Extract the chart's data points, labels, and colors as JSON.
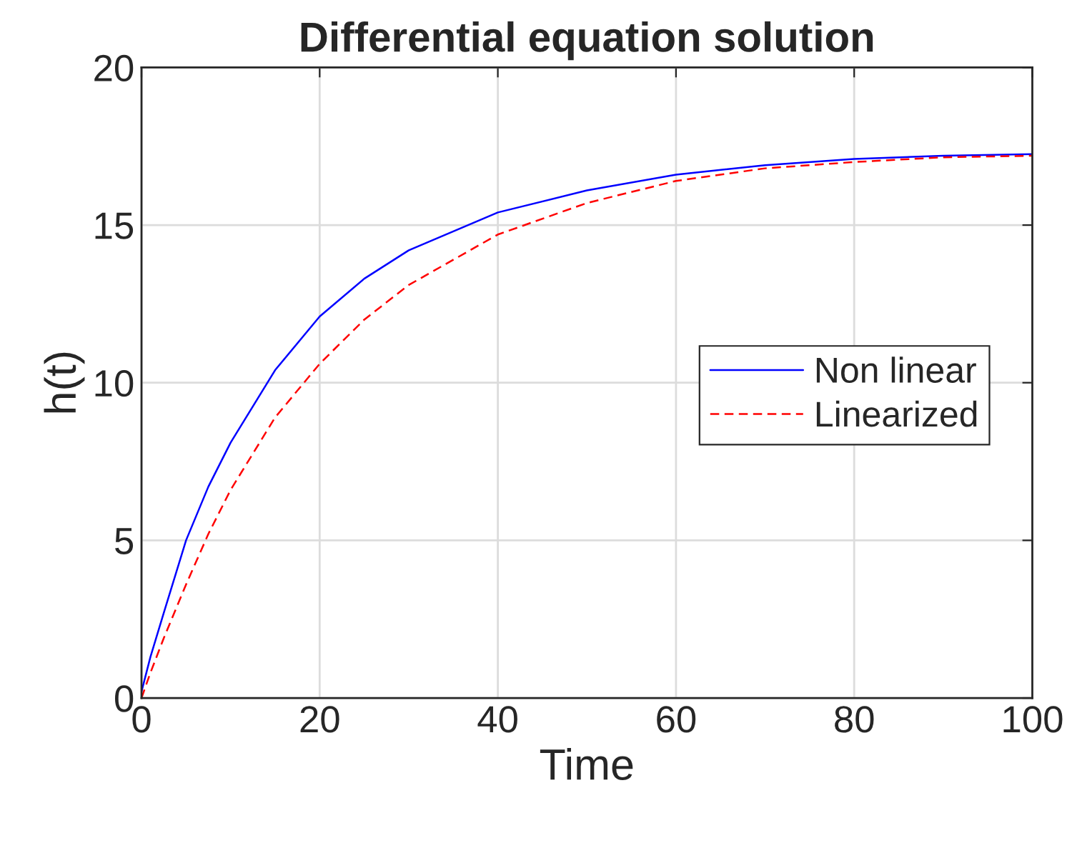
{
  "chart_data": {
    "type": "line",
    "title": "Differential equation solution",
    "xlabel": "Time",
    "ylabel": "h(t)",
    "x": [
      0,
      1,
      2.5,
      5,
      7.5,
      10,
      15,
      20,
      25,
      30,
      40,
      50,
      60,
      70,
      80,
      90,
      100
    ],
    "series": [
      {
        "name": "Non linear",
        "color": "#0000ff",
        "line_style": "solid",
        "values": [
          0.2,
          1.3,
          2.7,
          5.0,
          6.7,
          8.1,
          10.4,
          12.1,
          13.3,
          14.2,
          15.4,
          16.1,
          16.6,
          16.9,
          17.1,
          17.2,
          17.25
        ]
      },
      {
        "name": "Linearized",
        "color": "#ff0000",
        "line_style": "dashed",
        "values": [
          0,
          0.8,
          1.9,
          3.6,
          5.2,
          6.6,
          8.9,
          10.6,
          12.0,
          13.1,
          14.7,
          15.7,
          16.4,
          16.8,
          17.0,
          17.15,
          17.2
        ]
      }
    ],
    "xlim": [
      0,
      100
    ],
    "ylim": [
      0,
      20
    ],
    "xticks": [
      0,
      20,
      40,
      60,
      80,
      100
    ],
    "yticks": [
      0,
      5,
      10,
      15,
      20
    ],
    "grid": true,
    "legend": "right",
    "marker": "none"
  }
}
